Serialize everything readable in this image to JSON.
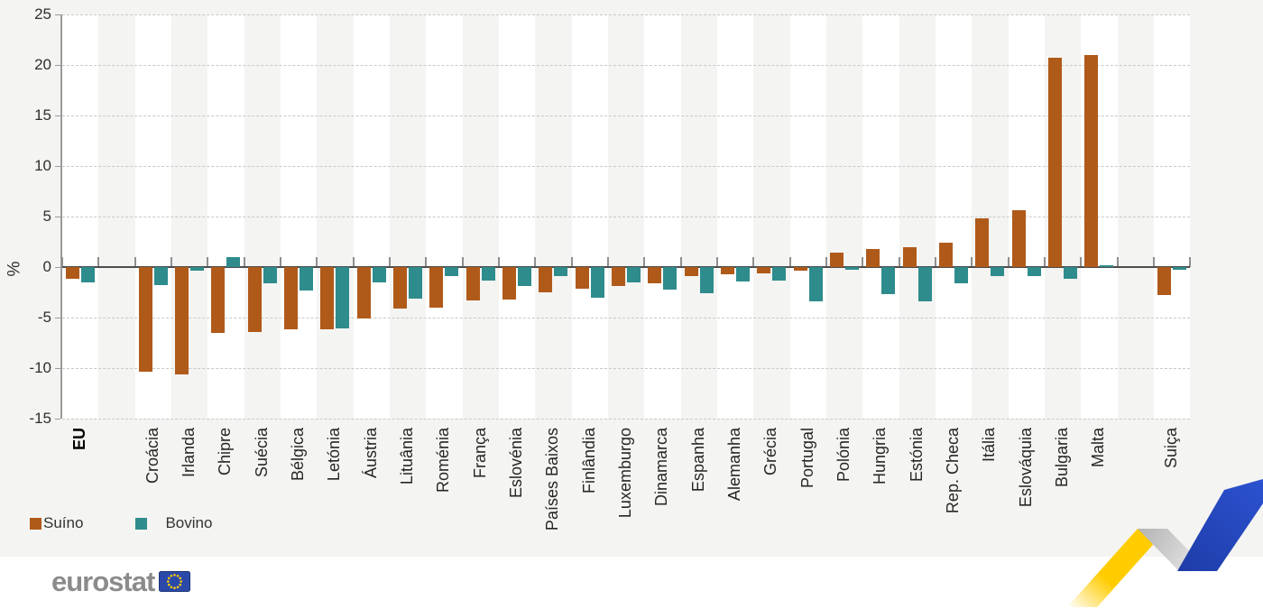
{
  "chart_data": {
    "type": "bar",
    "title": "",
    "ylabel": "%",
    "ylim": [
      -15,
      25
    ],
    "yticks": [
      25,
      20,
      15,
      10,
      5,
      0,
      -5,
      -10,
      -15
    ],
    "grid": true,
    "legend_position": "bottom-left",
    "categories": [
      "EU",
      "Croácia",
      "Irlanda",
      "Chipre",
      "Suécia",
      "Bélgica",
      "Letónia",
      "Áustria",
      "Lituânia",
      "Roménia",
      "França",
      "Eslovénia",
      "Países Baixos",
      "Finlândia",
      "Luxemburgo",
      "Dinamarca",
      "Espanha",
      "Alemanha",
      "Grécia",
      "Portugal",
      "Polónia",
      "Hungria",
      "Estónia",
      "Rep. Checa",
      "Itália",
      "Eslováquia",
      "Bulgaria",
      "Malta",
      "Suiça"
    ],
    "bold_categories": [
      "EU"
    ],
    "gap_after": [
      "EU",
      "Malta"
    ],
    "series": [
      {
        "name": "Suíno",
        "color": "#b05a1a",
        "values": [
          -1.2,
          -10.4,
          -10.6,
          -6.5,
          -6.4,
          -6.2,
          -6.2,
          -5.1,
          -4.1,
          -4.0,
          -3.3,
          -3.2,
          -2.5,
          -2.1,
          -1.9,
          -1.6,
          -0.9,
          -0.7,
          -0.6,
          -0.4,
          1.4,
          1.8,
          2.0,
          2.4,
          4.8,
          5.6,
          20.7,
          21.0,
          -2.8
        ]
      },
      {
        "name": "Bovino",
        "color": "#2f8c8c",
        "values": [
          -1.5,
          -1.8,
          -0.4,
          1.0,
          -1.6,
          -2.3,
          -6.1,
          -1.5,
          -3.1,
          -0.9,
          -1.3,
          -1.9,
          -0.9,
          -3.0,
          -1.5,
          -2.2,
          -2.6,
          -1.4,
          -1.3,
          -3.4,
          -0.3,
          -2.7,
          -3.4,
          -1.6,
          -0.9,
          -0.9,
          -1.2,
          0.2,
          -0.3
        ]
      }
    ]
  },
  "legend": {
    "items": [
      {
        "label": "Suíno",
        "color": "#b05a1a"
      },
      {
        "label": "Bovino",
        "color": "#2f8c8c"
      }
    ]
  },
  "footer": {
    "logo_text": "eurostat"
  },
  "colors": {
    "figure_bg": "#f4f4f2",
    "band_white": "#ffffff",
    "grid": "#c9c9c9",
    "zero_line": "#4d4d4d",
    "axis": "#9a9a9a",
    "flag_blue": "#2b49a8",
    "star_yellow": "#ffcc00",
    "ribbon_yellow": "#ffcc00",
    "ribbon_gray": "#bfbfbf",
    "ribbon_blue_dark": "#1e3ca8",
    "ribbon_blue_light": "#2c52d0",
    "logo_gray": "#8b8b8b"
  }
}
